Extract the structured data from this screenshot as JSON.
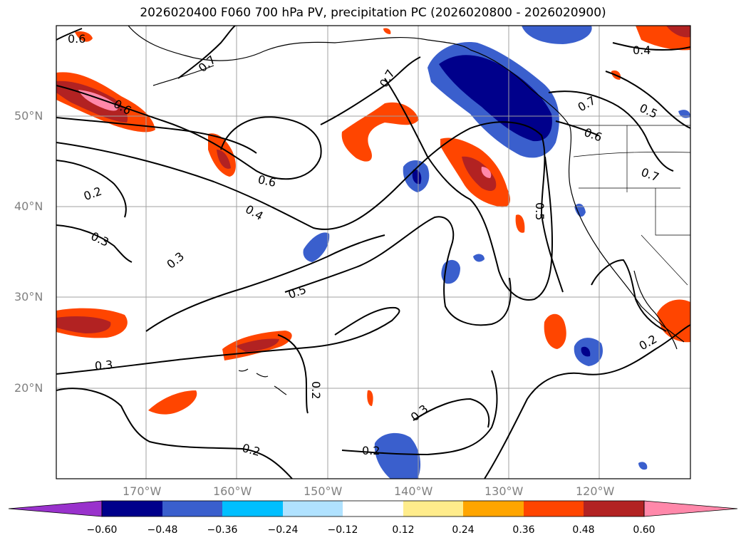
{
  "title": "2026020400 F060 700 hPa PV, precipitation PC (2026020800 - 2026020900)",
  "map": {
    "extent": {
      "lon": [
        -180,
        -110
      ],
      "lat": [
        10,
        60
      ]
    },
    "lat_labels": [
      "50°N",
      "40°N",
      "30°N",
      "20°N"
    ],
    "lon_labels": [
      "170°W",
      "160°W",
      "150°W",
      "140°W",
      "130°W",
      "120°W"
    ],
    "contour_labels": [
      "0.6",
      "0.7",
      "0.6",
      "0.2",
      "0.3",
      "0.6",
      "0.4",
      "0.3",
      "0.5",
      "0.7",
      "0.5",
      "0.7",
      "0.6",
      "0.4",
      "0.5",
      "0.7",
      "0.3",
      "0.2",
      "0.3",
      "0.2",
      "0.2",
      "0.2"
    ],
    "contour_color": "#000000",
    "coast_color": "#000000"
  },
  "colorbar": {
    "ticks": [
      "−0.60",
      "−0.48",
      "−0.36",
      "−0.24",
      "−0.12",
      "0.12",
      "0.24",
      "0.36",
      "0.48",
      "0.60"
    ],
    "colors": [
      "#9932CC",
      "#00008B",
      "#3A5FCD",
      "#00BFFF",
      "#B0E2FF",
      "#FFFFFF",
      "#FFEC8B",
      "#FFA500",
      "#FF4500",
      "#B22222",
      "#FF88AA"
    ]
  }
}
